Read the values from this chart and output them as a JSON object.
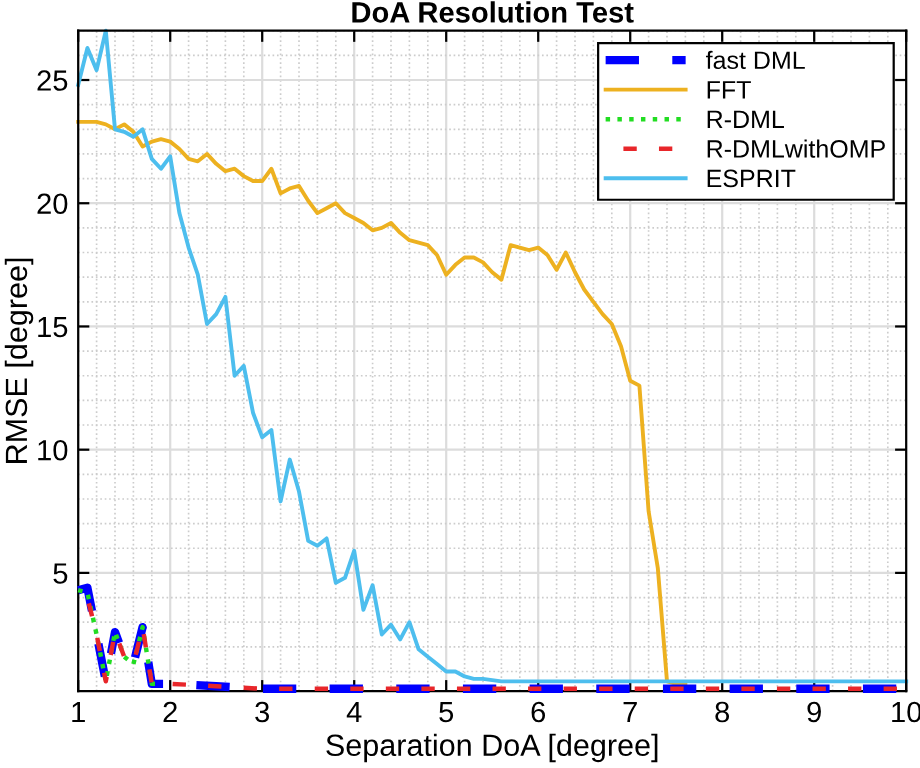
{
  "chart_data": {
    "type": "line",
    "title": "DoA Resolution Test",
    "xlabel": "Separation DoA [degree]",
    "ylabel": "RMSE [degree]",
    "xlim": [
      1,
      10
    ],
    "ylim": [
      0.2,
      27
    ],
    "xticks": [
      1,
      2,
      3,
      4,
      5,
      6,
      7,
      8,
      9,
      10
    ],
    "yticks": [
      5,
      10,
      15,
      20,
      25
    ],
    "grid": true,
    "legend": "top right",
    "series": [
      {
        "name": "fast DML",
        "color": "#0000ff",
        "line_style": "dashed",
        "x": [
          1.0,
          1.1,
          1.2,
          1.3,
          1.4,
          1.5,
          1.6,
          1.7,
          1.8,
          1.9,
          2.0,
          2.5,
          3.0,
          4.0,
          5.0,
          6.0,
          7.0,
          8.0,
          9.0,
          10.0
        ],
        "values": [
          4.3,
          4.4,
          2.5,
          0.6,
          2.6,
          1.6,
          1.3,
          2.8,
          0.5,
          0.5,
          0.5,
          0.4,
          0.3,
          0.3,
          0.3,
          0.3,
          0.3,
          0.3,
          0.3,
          0.3
        ]
      },
      {
        "name": "FFT",
        "color": "#edb120",
        "line_style": "solid",
        "x": [
          1.0,
          1.1,
          1.2,
          1.3,
          1.4,
          1.5,
          1.6,
          1.7,
          1.8,
          1.9,
          2.0,
          2.1,
          2.2,
          2.3,
          2.4,
          2.5,
          2.6,
          2.7,
          2.8,
          2.9,
          3.0,
          3.1,
          3.2,
          3.3,
          3.4,
          3.5,
          3.6,
          3.7,
          3.8,
          3.9,
          4.0,
          4.1,
          4.2,
          4.3,
          4.4,
          4.5,
          4.6,
          4.7,
          4.8,
          4.9,
          5.0,
          5.1,
          5.2,
          5.3,
          5.4,
          5.5,
          5.6,
          5.7,
          5.8,
          5.9,
          6.0,
          6.1,
          6.2,
          6.3,
          6.4,
          6.5,
          6.6,
          6.7,
          6.8,
          6.9,
          7.0,
          7.1,
          7.2,
          7.3,
          7.4,
          7.5,
          7.6
        ],
        "values": [
          23.3,
          23.3,
          23.3,
          23.2,
          23.0,
          23.2,
          22.9,
          22.3,
          22.5,
          22.6,
          22.5,
          22.2,
          21.8,
          21.7,
          22.0,
          21.6,
          21.3,
          21.4,
          21.1,
          20.9,
          20.9,
          21.4,
          20.4,
          20.6,
          20.7,
          20.1,
          19.6,
          19.8,
          20.0,
          19.6,
          19.4,
          19.2,
          18.9,
          19.0,
          19.2,
          18.8,
          18.5,
          18.4,
          18.3,
          17.9,
          17.1,
          17.5,
          17.8,
          17.8,
          17.6,
          17.2,
          16.9,
          18.3,
          18.2,
          18.1,
          18.2,
          17.9,
          17.3,
          18.0,
          17.2,
          16.5,
          16.0,
          15.5,
          15.1,
          14.2,
          12.8,
          12.6,
          7.5,
          5.2,
          0.6,
          0.5,
          0.5
        ]
      },
      {
        "name": "R-DML",
        "color": "#22dd22",
        "line_style": "dotted",
        "x": [
          1.0,
          1.1,
          1.2,
          1.3,
          1.4,
          1.5,
          1.6,
          1.7,
          1.8,
          1.9
        ],
        "values": [
          4.3,
          4.2,
          2.5,
          0.6,
          2.6,
          1.6,
          1.3,
          2.8,
          0.5,
          0.5
        ]
      },
      {
        "name": "R-DMLwithOMP",
        "color": "#e8262a",
        "line_style": "dashed",
        "x": [
          1.0,
          1.1,
          1.2,
          1.3,
          1.4,
          1.5,
          1.6,
          1.7,
          1.8,
          1.9,
          2.0,
          2.5,
          3.0,
          4.0,
          5.0,
          6.0,
          7.0,
          8.0,
          9.0,
          10.0
        ],
        "values": [
          4.3,
          4.0,
          2.5,
          0.6,
          2.6,
          1.6,
          1.3,
          2.8,
          0.5,
          0.5,
          0.5,
          0.4,
          0.3,
          0.3,
          0.3,
          0.3,
          0.3,
          0.3,
          0.3,
          0.3
        ]
      },
      {
        "name": "ESPRIT",
        "color": "#4dbeee",
        "line_style": "solid",
        "x": [
          1.0,
          1.1,
          1.2,
          1.3,
          1.4,
          1.5,
          1.6,
          1.7,
          1.8,
          1.9,
          2.0,
          2.1,
          2.2,
          2.3,
          2.4,
          2.5,
          2.6,
          2.7,
          2.8,
          2.9,
          3.0,
          3.1,
          3.2,
          3.3,
          3.4,
          3.5,
          3.6,
          3.7,
          3.8,
          3.9,
          4.0,
          4.1,
          4.2,
          4.3,
          4.4,
          4.5,
          4.6,
          4.7,
          4.8,
          4.9,
          5.0,
          5.1,
          5.2,
          5.3,
          5.4,
          5.6,
          6.0,
          6.5,
          7.0,
          7.5,
          8.0,
          9.0,
          10.0
        ],
        "values": [
          24.8,
          26.3,
          25.4,
          27.0,
          23.0,
          22.9,
          22.7,
          23.0,
          21.8,
          21.4,
          21.9,
          19.6,
          18.2,
          17.1,
          15.1,
          15.5,
          16.2,
          13.0,
          13.4,
          11.5,
          10.5,
          10.8,
          7.9,
          9.6,
          8.3,
          6.3,
          6.1,
          6.4,
          4.6,
          4.8,
          5.9,
          3.5,
          4.5,
          2.5,
          2.9,
          2.3,
          3.0,
          1.9,
          1.6,
          1.3,
          1.0,
          1.0,
          0.8,
          0.7,
          0.7,
          0.6,
          0.6,
          0.6,
          0.6,
          0.6,
          0.6,
          0.6,
          0.6
        ]
      }
    ]
  }
}
